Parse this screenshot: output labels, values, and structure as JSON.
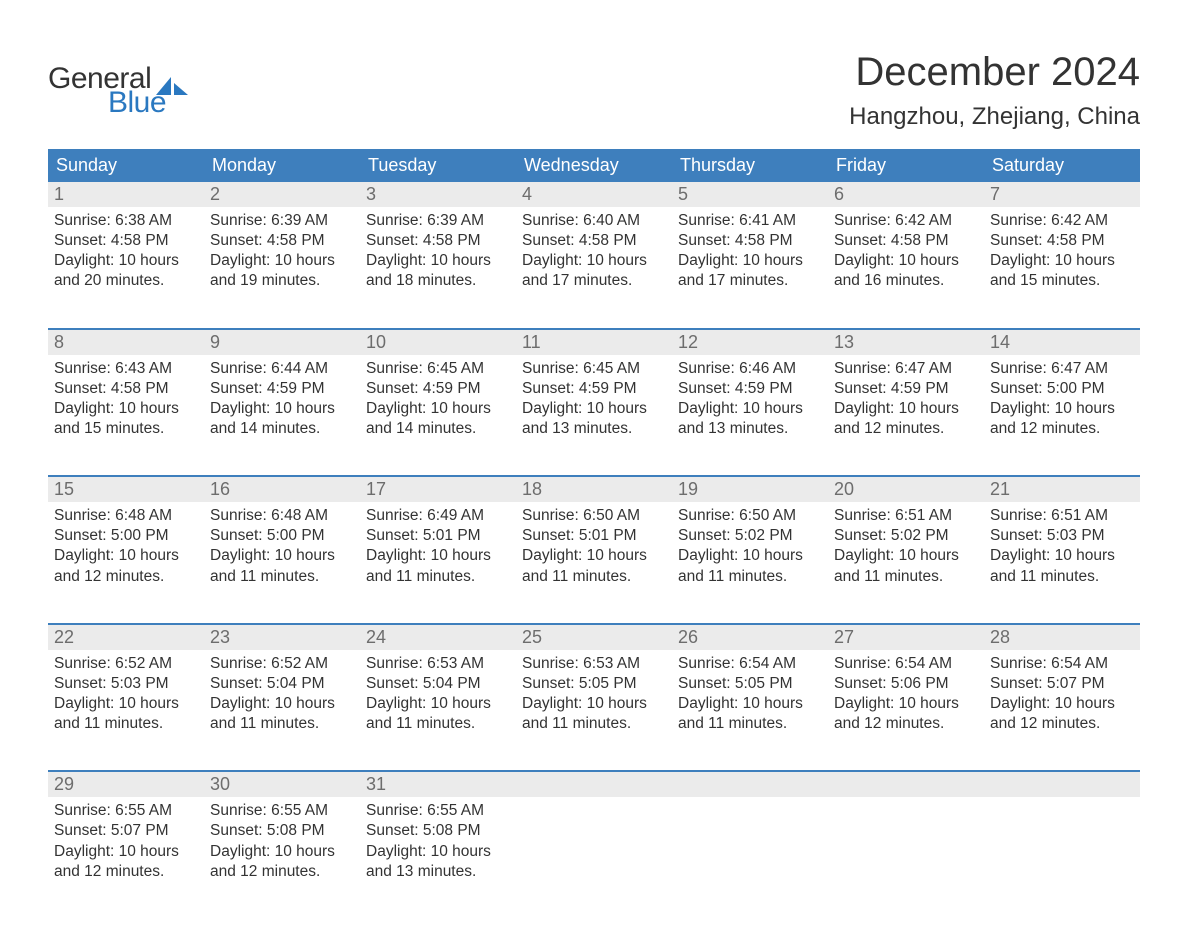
{
  "logo": {
    "word1": "General",
    "word2": "Blue",
    "sail_color": "#2a78c0",
    "text_color_dark": "#333333"
  },
  "title": "December 2024",
  "location": "Hangzhou, Zhejiang, China",
  "colors": {
    "header_bg": "#3e7fbd",
    "header_text": "#ffffff",
    "daynum_bg": "#ebebeb",
    "daynum_text": "#6d6d6d",
    "body_text": "#333333",
    "week_divider": "#3e7fbd",
    "page_bg": "#ffffff"
  },
  "weekdays": [
    "Sunday",
    "Monday",
    "Tuesday",
    "Wednesday",
    "Thursday",
    "Friday",
    "Saturday"
  ],
  "weeks": [
    [
      {
        "day": "1",
        "sunrise": "Sunrise: 6:38 AM",
        "sunset": "Sunset: 4:58 PM",
        "dl1": "Daylight: 10 hours",
        "dl2": "and 20 minutes."
      },
      {
        "day": "2",
        "sunrise": "Sunrise: 6:39 AM",
        "sunset": "Sunset: 4:58 PM",
        "dl1": "Daylight: 10 hours",
        "dl2": "and 19 minutes."
      },
      {
        "day": "3",
        "sunrise": "Sunrise: 6:39 AM",
        "sunset": "Sunset: 4:58 PM",
        "dl1": "Daylight: 10 hours",
        "dl2": "and 18 minutes."
      },
      {
        "day": "4",
        "sunrise": "Sunrise: 6:40 AM",
        "sunset": "Sunset: 4:58 PM",
        "dl1": "Daylight: 10 hours",
        "dl2": "and 17 minutes."
      },
      {
        "day": "5",
        "sunrise": "Sunrise: 6:41 AM",
        "sunset": "Sunset: 4:58 PM",
        "dl1": "Daylight: 10 hours",
        "dl2": "and 17 minutes."
      },
      {
        "day": "6",
        "sunrise": "Sunrise: 6:42 AM",
        "sunset": "Sunset: 4:58 PM",
        "dl1": "Daylight: 10 hours",
        "dl2": "and 16 minutes."
      },
      {
        "day": "7",
        "sunrise": "Sunrise: 6:42 AM",
        "sunset": "Sunset: 4:58 PM",
        "dl1": "Daylight: 10 hours",
        "dl2": "and 15 minutes."
      }
    ],
    [
      {
        "day": "8",
        "sunrise": "Sunrise: 6:43 AM",
        "sunset": "Sunset: 4:58 PM",
        "dl1": "Daylight: 10 hours",
        "dl2": "and 15 minutes."
      },
      {
        "day": "9",
        "sunrise": "Sunrise: 6:44 AM",
        "sunset": "Sunset: 4:59 PM",
        "dl1": "Daylight: 10 hours",
        "dl2": "and 14 minutes."
      },
      {
        "day": "10",
        "sunrise": "Sunrise: 6:45 AM",
        "sunset": "Sunset: 4:59 PM",
        "dl1": "Daylight: 10 hours",
        "dl2": "and 14 minutes."
      },
      {
        "day": "11",
        "sunrise": "Sunrise: 6:45 AM",
        "sunset": "Sunset: 4:59 PM",
        "dl1": "Daylight: 10 hours",
        "dl2": "and 13 minutes."
      },
      {
        "day": "12",
        "sunrise": "Sunrise: 6:46 AM",
        "sunset": "Sunset: 4:59 PM",
        "dl1": "Daylight: 10 hours",
        "dl2": "and 13 minutes."
      },
      {
        "day": "13",
        "sunrise": "Sunrise: 6:47 AM",
        "sunset": "Sunset: 4:59 PM",
        "dl1": "Daylight: 10 hours",
        "dl2": "and 12 minutes."
      },
      {
        "day": "14",
        "sunrise": "Sunrise: 6:47 AM",
        "sunset": "Sunset: 5:00 PM",
        "dl1": "Daylight: 10 hours",
        "dl2": "and 12 minutes."
      }
    ],
    [
      {
        "day": "15",
        "sunrise": "Sunrise: 6:48 AM",
        "sunset": "Sunset: 5:00 PM",
        "dl1": "Daylight: 10 hours",
        "dl2": "and 12 minutes."
      },
      {
        "day": "16",
        "sunrise": "Sunrise: 6:48 AM",
        "sunset": "Sunset: 5:00 PM",
        "dl1": "Daylight: 10 hours",
        "dl2": "and 11 minutes."
      },
      {
        "day": "17",
        "sunrise": "Sunrise: 6:49 AM",
        "sunset": "Sunset: 5:01 PM",
        "dl1": "Daylight: 10 hours",
        "dl2": "and 11 minutes."
      },
      {
        "day": "18",
        "sunrise": "Sunrise: 6:50 AM",
        "sunset": "Sunset: 5:01 PM",
        "dl1": "Daylight: 10 hours",
        "dl2": "and 11 minutes."
      },
      {
        "day": "19",
        "sunrise": "Sunrise: 6:50 AM",
        "sunset": "Sunset: 5:02 PM",
        "dl1": "Daylight: 10 hours",
        "dl2": "and 11 minutes."
      },
      {
        "day": "20",
        "sunrise": "Sunrise: 6:51 AM",
        "sunset": "Sunset: 5:02 PM",
        "dl1": "Daylight: 10 hours",
        "dl2": "and 11 minutes."
      },
      {
        "day": "21",
        "sunrise": "Sunrise: 6:51 AM",
        "sunset": "Sunset: 5:03 PM",
        "dl1": "Daylight: 10 hours",
        "dl2": "and 11 minutes."
      }
    ],
    [
      {
        "day": "22",
        "sunrise": "Sunrise: 6:52 AM",
        "sunset": "Sunset: 5:03 PM",
        "dl1": "Daylight: 10 hours",
        "dl2": "and 11 minutes."
      },
      {
        "day": "23",
        "sunrise": "Sunrise: 6:52 AM",
        "sunset": "Sunset: 5:04 PM",
        "dl1": "Daylight: 10 hours",
        "dl2": "and 11 minutes."
      },
      {
        "day": "24",
        "sunrise": "Sunrise: 6:53 AM",
        "sunset": "Sunset: 5:04 PM",
        "dl1": "Daylight: 10 hours",
        "dl2": "and 11 minutes."
      },
      {
        "day": "25",
        "sunrise": "Sunrise: 6:53 AM",
        "sunset": "Sunset: 5:05 PM",
        "dl1": "Daylight: 10 hours",
        "dl2": "and 11 minutes."
      },
      {
        "day": "26",
        "sunrise": "Sunrise: 6:54 AM",
        "sunset": "Sunset: 5:05 PM",
        "dl1": "Daylight: 10 hours",
        "dl2": "and 11 minutes."
      },
      {
        "day": "27",
        "sunrise": "Sunrise: 6:54 AM",
        "sunset": "Sunset: 5:06 PM",
        "dl1": "Daylight: 10 hours",
        "dl2": "and 12 minutes."
      },
      {
        "day": "28",
        "sunrise": "Sunrise: 6:54 AM",
        "sunset": "Sunset: 5:07 PM",
        "dl1": "Daylight: 10 hours",
        "dl2": "and 12 minutes."
      }
    ],
    [
      {
        "day": "29",
        "sunrise": "Sunrise: 6:55 AM",
        "sunset": "Sunset: 5:07 PM",
        "dl1": "Daylight: 10 hours",
        "dl2": "and 12 minutes."
      },
      {
        "day": "30",
        "sunrise": "Sunrise: 6:55 AM",
        "sunset": "Sunset: 5:08 PM",
        "dl1": "Daylight: 10 hours",
        "dl2": "and 12 minutes."
      },
      {
        "day": "31",
        "sunrise": "Sunrise: 6:55 AM",
        "sunset": "Sunset: 5:08 PM",
        "dl1": "Daylight: 10 hours",
        "dl2": "and 13 minutes."
      },
      null,
      null,
      null,
      null
    ]
  ]
}
